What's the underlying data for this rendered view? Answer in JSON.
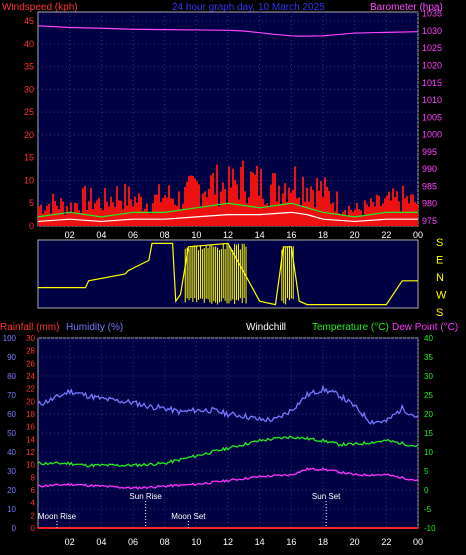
{
  "header": {
    "windspeed_label": "Windspeed (kph)",
    "graph_title": "24 hour graph day, 10 March 2025",
    "barometer_label": "Barometer (hpa)"
  },
  "footer_labels": {
    "rainfall": "Rainfall (mm)",
    "humidity": "Humidity (%)",
    "windchill": "Windchill",
    "temperature": "Temperature (°C)",
    "dewpoint": "Dew Point (°C)"
  },
  "direction_letters": [
    "S",
    "E",
    "N",
    "W",
    "S"
  ],
  "time_ticks": [
    "02",
    "04",
    "06",
    "08",
    "10",
    "12",
    "14",
    "16",
    "18",
    "20",
    "22",
    "00"
  ],
  "astro": {
    "moon_rise": "Moon Rise",
    "sun_rise": "Sun Rise",
    "moon_set": "Moon Set",
    "sun_set": "Sun Set"
  },
  "colors": {
    "wind_axis": "#ff3333",
    "baro_axis": "#ff44ff",
    "title": "#3333ff",
    "humidity": "#7777ff",
    "temperature": "#22ee22",
    "dewpoint": "#ff33ff",
    "windchill": "#ffffff",
    "direction": "#ffff00",
    "plot_bg": "#000044"
  },
  "chart_data": [
    {
      "type": "line",
      "x_unit": "hours",
      "x_range": [
        0,
        24
      ],
      "left_axis": {
        "label": "Windspeed (kph)",
        "ticks": [
          0,
          5,
          10,
          15,
          20,
          25,
          30,
          35,
          40,
          45
        ],
        "range": [
          0,
          47
        ]
      },
      "right_axis": {
        "label": "Barometer (hpa)",
        "ticks": [
          975,
          980,
          985,
          990,
          995,
          1000,
          1005,
          1010,
          1015,
          1020,
          1025,
          1030,
          1035
        ],
        "range": [
          973.5,
          1035.5
        ]
      },
      "series": [
        {
          "kind": "barometer",
          "x": [
            0,
            2,
            4,
            6,
            8,
            10,
            12,
            13,
            14,
            15,
            16,
            16.5,
            17,
            18,
            19,
            20,
            22,
            24
          ],
          "y": [
            1031.5,
            1031,
            1030.8,
            1030.5,
            1030.4,
            1030.3,
            1030.2,
            1030,
            1029.5,
            1029,
            1028.6,
            1028.5,
            1028.5,
            1028.6,
            1029,
            1029.4,
            1029.6,
            1029.8
          ]
        },
        {
          "kind": "gust",
          "x": [
            0,
            1,
            2,
            3,
            4,
            5,
            6,
            7,
            8,
            9,
            10,
            11,
            12,
            13,
            14,
            15,
            16,
            17,
            18,
            19,
            20,
            21,
            22,
            23,
            24
          ],
          "y": [
            5,
            6,
            5,
            7,
            6,
            8,
            7,
            6,
            8,
            7,
            10,
            11,
            10,
            12,
            11,
            10,
            12,
            11,
            9,
            6,
            4,
            5,
            6,
            7,
            6
          ]
        },
        {
          "kind": "average_wind",
          "x": [
            0,
            2,
            4,
            6,
            8,
            10,
            12,
            14,
            16,
            17,
            18,
            20,
            22,
            24
          ],
          "y": [
            2,
            3,
            2,
            3,
            3,
            4,
            5,
            4,
            5,
            4,
            3,
            2,
            3,
            3
          ]
        },
        {
          "kind": "windspeed",
          "x": [
            0,
            2,
            4,
            6,
            8,
            10,
            12,
            14,
            16,
            17,
            18,
            20,
            22,
            24
          ],
          "y": [
            1,
            1.5,
            1,
            1.5,
            1.5,
            2,
            2.5,
            2.5,
            3,
            2.5,
            1.5,
            1,
            1.5,
            1.5
          ]
        }
      ]
    },
    {
      "type": "line",
      "x_unit": "hours",
      "x_range": [
        0,
        24
      ],
      "series": [
        {
          "kind": "wind_direction",
          "x": [
            0,
            3,
            3.2,
            5.5,
            5.7,
            7,
            7.2,
            8.5,
            8.7,
            9,
            9.5,
            12,
            14,
            15,
            15.5,
            16,
            16.5,
            17,
            18,
            19,
            20,
            22,
            23,
            24
          ],
          "y": [
            0.3,
            0.3,
            0.4,
            0.5,
            0.55,
            0.7,
            0.95,
            0.95,
            0.1,
            0.2,
            0.9,
            0.95,
            0.1,
            0.05,
            0.9,
            0.9,
            0.1,
            0.05,
            0.05,
            0.05,
            0.05,
            0.05,
            0.4,
            0.4
          ]
        }
      ]
    },
    {
      "type": "line",
      "x_unit": "hours",
      "x_range": [
        0,
        24
      ],
      "humidity_axis": {
        "label": "Humidity (%)",
        "ticks": [
          0,
          10,
          20,
          30,
          40,
          50,
          60,
          70,
          80,
          90,
          100
        ],
        "range": [
          0,
          100
        ]
      },
      "rainfall_axis": {
        "label": "Rainfall (mm)",
        "ticks": [
          0,
          2,
          4,
          6,
          8,
          10,
          12,
          14,
          16,
          18,
          20,
          22,
          24,
          26,
          28,
          30
        ],
        "range": [
          0,
          30
        ]
      },
      "temperature_axis": {
        "label": "Temperature (°C)",
        "ticks": [
          -10,
          -5,
          0,
          5,
          10,
          15,
          20,
          25,
          30,
          35,
          40
        ],
        "range": [
          -10,
          40
        ]
      },
      "series": [
        {
          "kind": "humidity",
          "x": [
            0,
            1,
            2,
            3,
            4,
            5,
            6,
            7,
            8,
            9,
            10,
            11,
            12,
            13,
            14,
            15,
            16,
            17,
            18,
            19,
            20,
            21,
            22,
            23,
            24
          ],
          "y": [
            65,
            68,
            72,
            70,
            68,
            67,
            66,
            64,
            63,
            61,
            62,
            62,
            60,
            59,
            57,
            57,
            62,
            70,
            73,
            70,
            64,
            56,
            56,
            63,
            58
          ]
        },
        {
          "kind": "temperature",
          "x": [
            0,
            2,
            3,
            4,
            6,
            8,
            10,
            12,
            13,
            14,
            16,
            17,
            18,
            19,
            20,
            22,
            24
          ],
          "y": [
            7,
            7,
            6.5,
            6.5,
            6.5,
            7,
            9,
            11,
            12,
            13,
            14,
            13.5,
            13,
            12,
            12,
            13,
            11.5
          ]
        },
        {
          "kind": "dewpoint",
          "x": [
            0,
            2,
            4,
            6,
            8,
            10,
            12,
            14,
            16,
            17,
            18,
            20,
            22,
            24
          ],
          "y": [
            1,
            1.5,
            1,
            0.5,
            1,
            1.5,
            2.5,
            3.5,
            4,
            5.5,
            5.5,
            4,
            4,
            2.5
          ]
        },
        {
          "kind": "rainfall",
          "x": [
            0,
            24
          ],
          "y": [
            0,
            0
          ]
        }
      ]
    }
  ]
}
